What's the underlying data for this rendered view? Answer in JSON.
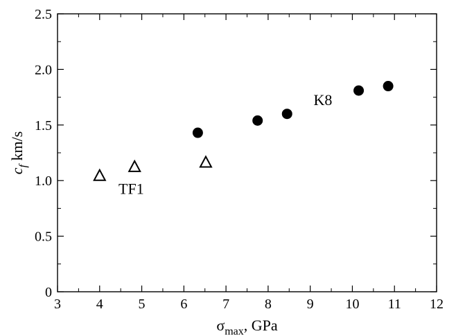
{
  "chart_data": {
    "type": "scatter",
    "title": "",
    "xlabel": {
      "main": "σ",
      "sub": "max",
      "rest": ", GPa"
    },
    "ylabel": {
      "main": "c",
      "sub": "f",
      "rest": " km/s"
    },
    "xlim": [
      3,
      12
    ],
    "ylim": [
      0,
      2.5
    ],
    "xticks": [
      "3",
      "4",
      "5",
      "6",
      "7",
      "8",
      "9",
      "10",
      "11",
      "12"
    ],
    "yticks": [
      "0",
      "0.5",
      "1.0",
      "1.5",
      "2.0",
      "2.5"
    ],
    "grid": false,
    "legend": "none",
    "series": [
      {
        "marker": "triangle-open",
        "color": "#000000",
        "x": [
          4.0,
          4.83,
          6.52
        ],
        "y": [
          1.04,
          1.12,
          1.16
        ]
      },
      {
        "marker": "circle-filled",
        "color": "#000000",
        "x": [
          6.33,
          7.75,
          8.45,
          10.15,
          10.85
        ],
        "y": [
          1.43,
          1.54,
          1.6,
          1.81,
          1.85
        ]
      }
    ],
    "annotations": [
      {
        "text": "TF1",
        "x": 4.75,
        "y": 0.88
      },
      {
        "text": "K8",
        "x": 9.3,
        "y": 1.68
      }
    ]
  }
}
